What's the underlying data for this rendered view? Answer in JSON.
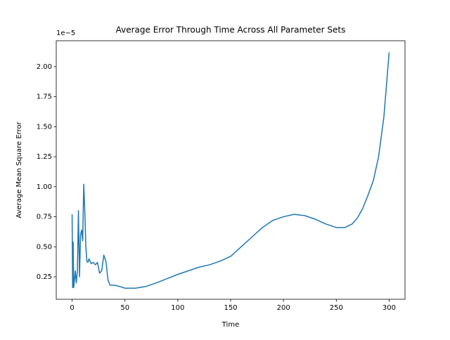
{
  "chart_data": {
    "type": "line",
    "title": "Average Error Through Time Across All Parameter Sets",
    "x_label": "Time",
    "y_label": "Average Mean Square Error",
    "y_offset_label": "1e−5",
    "color": "#1f77b4",
    "x": [
      0,
      0.5,
      1,
      1.5,
      2,
      3,
      4,
      5,
      6,
      7,
      8,
      9,
      10,
      11,
      12,
      13,
      14,
      15,
      16,
      18,
      20,
      22,
      24,
      26,
      28,
      30,
      32,
      34,
      36,
      40,
      45,
      50,
      60,
      70,
      80,
      90,
      100,
      110,
      120,
      130,
      140,
      150,
      160,
      170,
      180,
      190,
      200,
      210,
      220,
      230,
      240,
      250,
      258,
      265,
      270,
      275,
      280,
      285,
      290,
      295,
      300
    ],
    "values": [
      0.77,
      0.16,
      0.54,
      0.16,
      0.2,
      0.3,
      0.2,
      0.3,
      0.8,
      0.25,
      0.6,
      0.64,
      0.55,
      1.02,
      0.8,
      0.5,
      0.38,
      0.37,
      0.4,
      0.36,
      0.37,
      0.35,
      0.37,
      0.28,
      0.3,
      0.43,
      0.38,
      0.22,
      0.18,
      0.18,
      0.17,
      0.155,
      0.155,
      0.17,
      0.2,
      0.235,
      0.27,
      0.3,
      0.33,
      0.35,
      0.38,
      0.42,
      0.5,
      0.58,
      0.66,
      0.72,
      0.75,
      0.77,
      0.76,
      0.73,
      0.69,
      0.66,
      0.66,
      0.69,
      0.74,
      0.82,
      0.93,
      1.05,
      1.25,
      1.58,
      2.12
    ],
    "xlim": [
      -15,
      315
    ],
    "xticks": [
      0,
      50,
      100,
      150,
      200,
      250,
      300
    ],
    "ylim": [
      0.063,
      2.216
    ],
    "yticks": [
      0.25,
      {
        "value": 0.5,
        "label": "0.50"
      },
      0.75,
      {
        "value": 1,
        "label": "1.00"
      },
      1.25,
      {
        "value": 1.5,
        "label": "1.50"
      },
      1.75,
      {
        "value": 2,
        "label": "2.00"
      }
    ]
  }
}
